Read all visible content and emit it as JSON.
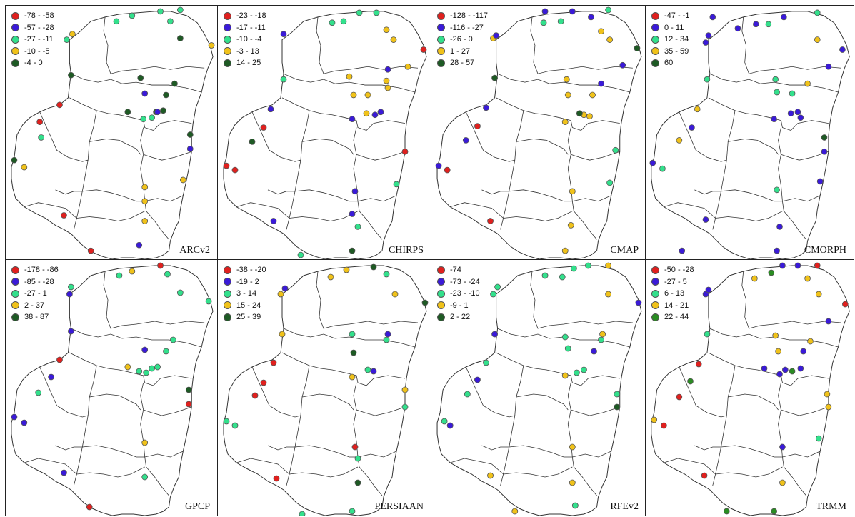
{
  "colors": {
    "red": "#e0201e",
    "blue": "#3a1ad8",
    "lightgreen": "#33e08c",
    "yellow": "#f0c21a",
    "darkgreen": "#1e5a24",
    "green": "#2a8c22",
    "outline": "#333333"
  },
  "panels": [
    {
      "name": "ARCv2",
      "legend": [
        {
          "label": "-78 - -58",
          "color": "red"
        },
        {
          "label": "-57 - -28",
          "color": "blue"
        },
        {
          "label": "-27 - -11",
          "color": "lightgreen"
        },
        {
          "label": "-10 - -5",
          "color": "yellow"
        },
        {
          "label": "-4 - 0",
          "color": "darkgreen"
        }
      ]
    },
    {
      "name": "CHIRPS",
      "legend": [
        {
          "label": "-23 - -18",
          "color": "red"
        },
        {
          "label": "-17 - -11",
          "color": "blue"
        },
        {
          "label": "-10 - -4",
          "color": "lightgreen"
        },
        {
          "label": "-3 - 13",
          "color": "yellow"
        },
        {
          "label": "14 - 25",
          "color": "darkgreen"
        }
      ]
    },
    {
      "name": "CMAP",
      "legend": [
        {
          "label": "-128 - -117",
          "color": "red"
        },
        {
          "label": "-116 - -27",
          "color": "blue"
        },
        {
          "label": "-26 - 0",
          "color": "lightgreen"
        },
        {
          "label": "1 - 27",
          "color": "yellow"
        },
        {
          "label": "28 - 57",
          "color": "darkgreen"
        }
      ]
    },
    {
      "name": "CMORPH",
      "legend": [
        {
          "label": "-47 - -1",
          "color": "red"
        },
        {
          "label": "0 - 11",
          "color": "blue"
        },
        {
          "label": "12 - 34",
          "color": "lightgreen"
        },
        {
          "label": "35 - 59",
          "color": "yellow"
        },
        {
          "label": "60",
          "color": "darkgreen"
        }
      ]
    },
    {
      "name": "GPCP",
      "legend": [
        {
          "label": "-178 - -86",
          "color": "red"
        },
        {
          "label": "-85 - -28",
          "color": "blue"
        },
        {
          "label": "-27 - 1",
          "color": "lightgreen"
        },
        {
          "label": "2 - 37",
          "color": "yellow"
        },
        {
          "label": "38 - 87",
          "color": "darkgreen"
        }
      ]
    },
    {
      "name": "PERSIAAN",
      "legend": [
        {
          "label": "-38 - -20",
          "color": "red"
        },
        {
          "label": "-19 - 2",
          "color": "blue"
        },
        {
          "label": "3 - 14",
          "color": "lightgreen"
        },
        {
          "label": "15 - 24",
          "color": "yellow"
        },
        {
          "label": "25 - 39",
          "color": "darkgreen"
        }
      ]
    },
    {
      "name": "RFEv2",
      "legend": [
        {
          "label": "-74",
          "color": "red"
        },
        {
          "label": "-73 - -24",
          "color": "blue"
        },
        {
          "label": "-23 - -10",
          "color": "lightgreen"
        },
        {
          "label": "-9 - 1",
          "color": "yellow"
        },
        {
          "label": "2 - 22",
          "color": "darkgreen"
        }
      ]
    },
    {
      "name": "TRMM",
      "legend": [
        {
          "label": "-50 - -28",
          "color": "red"
        },
        {
          "label": "-27 - 5",
          "color": "blue"
        },
        {
          "label": "6 - 13",
          "color": "lightgreen"
        },
        {
          "label": "14 - 21",
          "color": "yellow"
        },
        {
          "label": "22 - 44",
          "color": "green"
        }
      ]
    }
  ]
}
